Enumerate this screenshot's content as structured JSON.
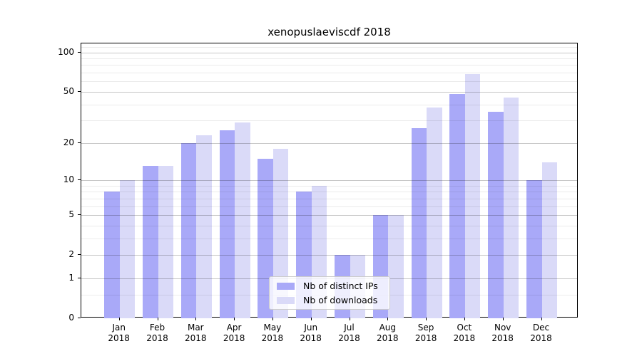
{
  "title": "xenopuslaeviscdf 2018",
  "year_label": "2018",
  "colors": {
    "distinct_ips_bar": "#a9a9f8",
    "downloads_bar": "#dadaf8",
    "axis": "#000000",
    "major_grid": "#c6c6c6",
    "minor_grid": "#ececec",
    "legend_border": "#cccccc"
  },
  "legend": {
    "items": [
      {
        "label": "Nb of distinct IPs",
        "swatch_color": "#a9a9f8"
      },
      {
        "label": "Nb of downloads",
        "swatch_color": "#dadaf8"
      }
    ]
  },
  "chart_data": {
    "type": "bar",
    "title": "xenopuslaeviscdf 2018",
    "categories": [
      "Jan",
      "Feb",
      "Mar",
      "Apr",
      "May",
      "Jun",
      "Jul",
      "Aug",
      "Sep",
      "Oct",
      "Nov",
      "Dec"
    ],
    "category_second_line": "2018",
    "series": [
      {
        "key": "ips",
        "name": "Nb of distinct IPs",
        "color": "#a9a9f8",
        "values": [
          8,
          13,
          20,
          25,
          15,
          8,
          2,
          5,
          26,
          48,
          35,
          10
        ]
      },
      {
        "key": "downloads",
        "name": "Nb of downloads",
        "color": "#dadaf8",
        "values": [
          10,
          13,
          23,
          29,
          18,
          9,
          2,
          5,
          38,
          68,
          45,
          14
        ]
      }
    ],
    "xlabel": "",
    "ylabel": "",
    "y_scale": "log1p",
    "ylim": [
      0,
      117
    ],
    "y_ticks": [
      0,
      1,
      2,
      5,
      10,
      20,
      50,
      100
    ],
    "y_tick_labels": [
      "0",
      "1",
      "2",
      "5",
      "10",
      "20",
      "50",
      "100"
    ],
    "y_minor_ticks": [
      0.5,
      3,
      4,
      6,
      7,
      8,
      9,
      30,
      40,
      60,
      70,
      80,
      90,
      110
    ],
    "grid": true,
    "grid_above_bars": true,
    "legend_position": "lower center-right"
  }
}
